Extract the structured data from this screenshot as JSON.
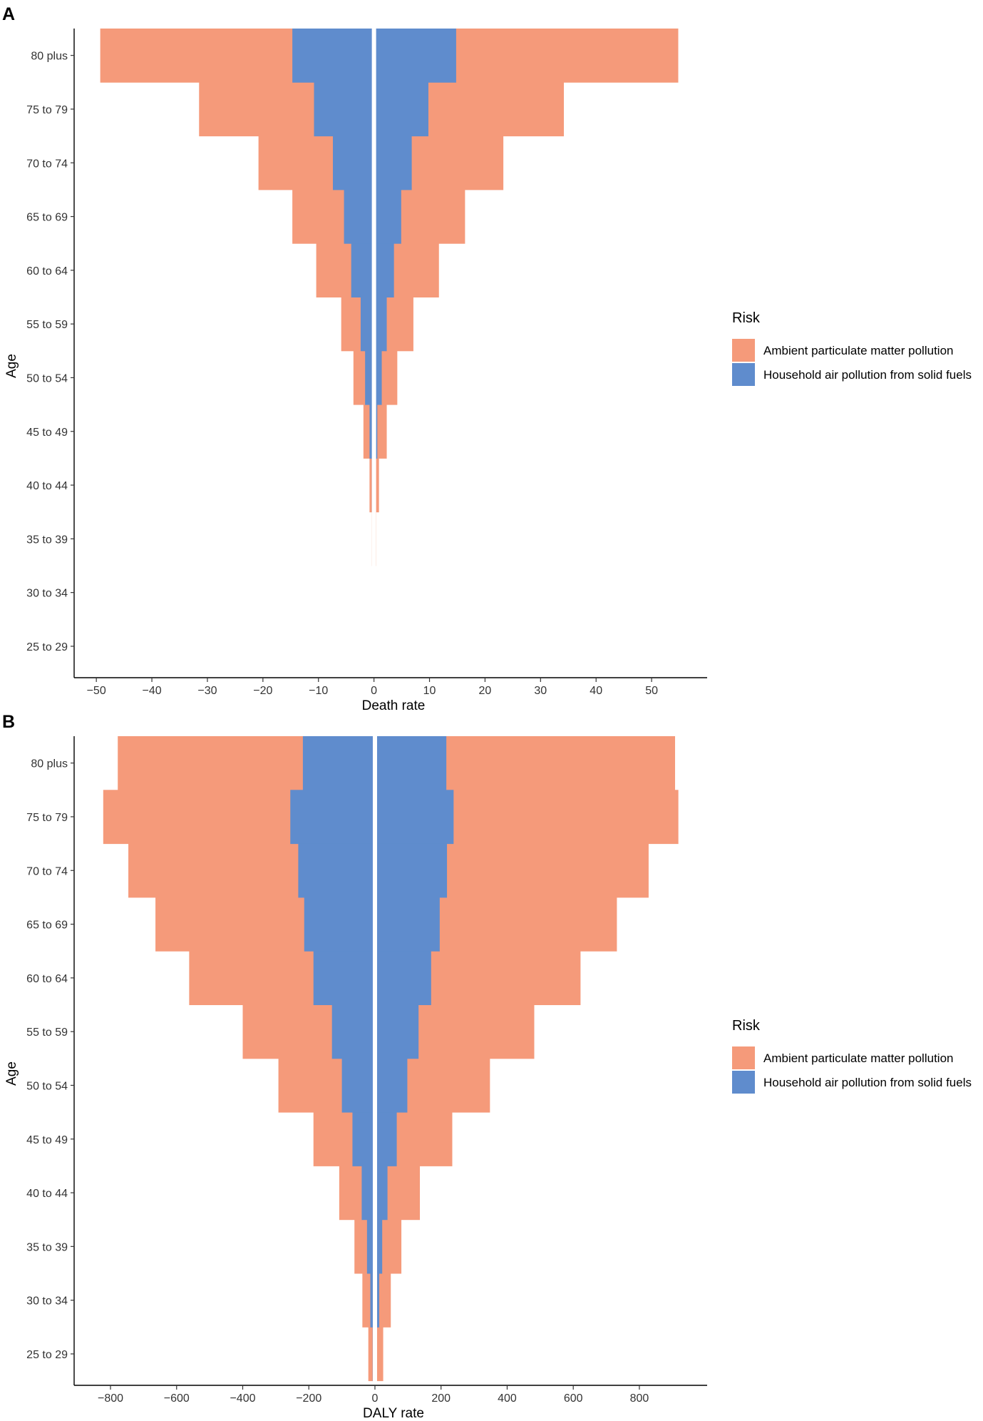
{
  "chart_data": [
    {
      "panel": "A",
      "type": "bar",
      "orientation": "horizontal-diverging",
      "categories": [
        "80 plus",
        "75 to 79",
        "70 to 74",
        "65 to 69",
        "60 to 64",
        "55 to 59",
        "50 to 54",
        "45 to 49",
        "40 to 44",
        "35 to 39",
        "30 to 34",
        "25 to 29"
      ],
      "series": [
        {
          "name": "Ambient particulate matter pollution",
          "color": "#F59A7A",
          "left": [
            -49.3,
            -31.5,
            -20.8,
            -14.7,
            -10.4,
            -5.9,
            -3.7,
            -1.9,
            -0.8,
            -0.4,
            -0.2,
            0
          ],
          "right": [
            54.8,
            34.2,
            23.3,
            16.4,
            11.7,
            7.1,
            4.2,
            2.3,
            0.9,
            0.4,
            0.2,
            0
          ]
        },
        {
          "name": "Household air pollution from solid fuels",
          "color": "#5F8CCD",
          "left": [
            -14.7,
            -10.8,
            -7.4,
            -5.4,
            -4.1,
            -2.4,
            -1.6,
            -0.8,
            -0.4,
            -0.1,
            -0.05,
            0
          ],
          "right": [
            14.8,
            9.8,
            6.8,
            4.9,
            3.6,
            2.3,
            1.4,
            0.6,
            0.3,
            0.1,
            0.05,
            0
          ]
        }
      ],
      "xlabel": "Death rate",
      "ylabel": "Age",
      "xticks": [
        -50,
        -40,
        -30,
        -20,
        -10,
        0,
        10,
        20,
        30,
        40,
        50
      ],
      "xlim": [
        -54,
        60
      ],
      "legend": {
        "title": "Risk",
        "position": "right"
      }
    },
    {
      "panel": "B",
      "type": "bar",
      "orientation": "horizontal-diverging",
      "categories": [
        "80 plus",
        "75 to 79",
        "70 to 74",
        "65 to 69",
        "60 to 64",
        "55 to 59",
        "50 to 54",
        "45 to 49",
        "40 to 44",
        "35 to 39",
        "30 to 34",
        "25 to 29"
      ],
      "series": [
        {
          "name": "Ambient particulate matter pollution",
          "color": "#F59A7A",
          "left": [
            -778,
            -822,
            -746,
            -664,
            -562,
            -400,
            -292,
            -186,
            -108,
            -62,
            -38,
            -20
          ],
          "right": [
            908,
            918,
            828,
            732,
            622,
            482,
            348,
            234,
            136,
            80,
            48,
            25
          ]
        },
        {
          "name": "Household air pollution from solid fuels",
          "color": "#5F8CCD",
          "left": [
            -218,
            -256,
            -232,
            -214,
            -186,
            -130,
            -100,
            -68,
            -40,
            -24,
            -14,
            -7
          ],
          "right": [
            216,
            238,
            218,
            196,
            170,
            132,
            98,
            66,
            38,
            22,
            13,
            6
          ]
        }
      ],
      "xlabel": "DALY rate",
      "ylabel": "Age",
      "xticks": [
        -800,
        -600,
        -400,
        -200,
        0,
        200,
        400,
        600,
        800
      ],
      "xlim": [
        -910,
        1005
      ],
      "legend": {
        "title": "Risk",
        "position": "right"
      }
    }
  ]
}
